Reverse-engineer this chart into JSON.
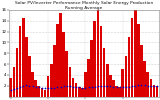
{
  "title": "Solar PV/Inverter Performance Monthly Solar Energy Production Running Average",
  "title_fontsize": 3.2,
  "bar_values": [
    3.5,
    5.5,
    9.0,
    13.0,
    14.5,
    11.0,
    7.5,
    4.5,
    3.0,
    2.0,
    1.5,
    1.2,
    3.8,
    6.0,
    9.5,
    13.5,
    15.5,
    12.0,
    8.5,
    5.5,
    3.5,
    2.5,
    1.8,
    1.5,
    4.5,
    7.0,
    10.5,
    14.0,
    16.0,
    13.0,
    9.0,
    6.0,
    4.0,
    3.0,
    2.0,
    1.8,
    5.0,
    7.5,
    11.0,
    14.5,
    16.5,
    13.5,
    9.5,
    6.5,
    4.5,
    3.2,
    2.2,
    2.0
  ],
  "running_avg": [
    1.2,
    1.3,
    1.5,
    1.8,
    2.0,
    2.1,
    2.0,
    1.9,
    1.8,
    1.7,
    1.6,
    1.5,
    1.5,
    1.5,
    1.6,
    1.7,
    1.8,
    1.9,
    1.9,
    1.9,
    1.8,
    1.8,
    1.7,
    1.6,
    1.6,
    1.7,
    1.7,
    1.8,
    1.9,
    2.0,
    2.0,
    1.9,
    1.9,
    1.8,
    1.8,
    1.7,
    1.7,
    1.8,
    1.8,
    1.9,
    2.0,
    2.1,
    2.1,
    2.1,
    2.0,
    2.0,
    1.9,
    1.9
  ],
  "bar_color": "#dd0000",
  "avg_color": "#0000cc",
  "bg_color": "#ffffff",
  "plot_bg": "#ffffff",
  "grid_color": "#aaaaaa",
  "ylim": [
    0,
    16
  ],
  "yticks": [
    2,
    4,
    6,
    8,
    10,
    12,
    14,
    16
  ],
  "tick_fontsize": 2.8,
  "n_bars": 48
}
